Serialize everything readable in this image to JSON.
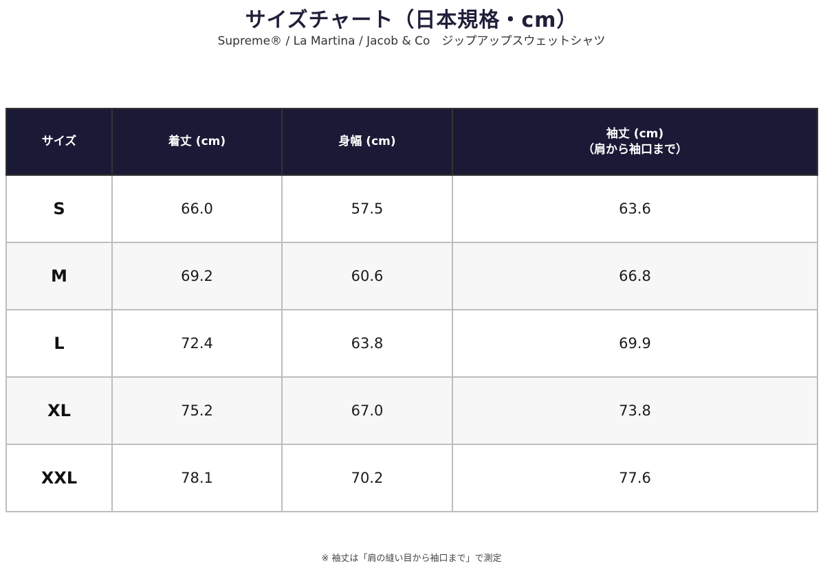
{
  "title": "サイズチャート（日本規格・cm）",
  "subtitle": "Supreme® / La Martina / Jacob & Co　ジップアップスウェットシャツ",
  "table": {
    "headers": {
      "size": "サイズ",
      "length": "着丈 (cm)",
      "width": "身幅 (cm)",
      "sleeve": "袖丈 (cm)",
      "sleeve_note": "（肩から袖口まで）"
    },
    "rows": [
      {
        "size": "S",
        "length": "66.0",
        "width": "57.5",
        "sleeve": "63.6"
      },
      {
        "size": "M",
        "length": "69.2",
        "width": "60.6",
        "sleeve": "66.8"
      },
      {
        "size": "L",
        "length": "72.4",
        "width": "63.8",
        "sleeve": "69.9"
      },
      {
        "size": "XL",
        "length": "75.2",
        "width": "67.0",
        "sleeve": "73.8"
      },
      {
        "size": "XXL",
        "length": "78.1",
        "width": "70.2",
        "sleeve": "77.6"
      }
    ]
  },
  "note": "※ 袖丈は「肩の縫い目から袖口まで」で測定",
  "colors": {
    "header_bg": "#1b1a36",
    "header_text": "#ffffff",
    "alt_row_bg": "#f7f7f7"
  }
}
